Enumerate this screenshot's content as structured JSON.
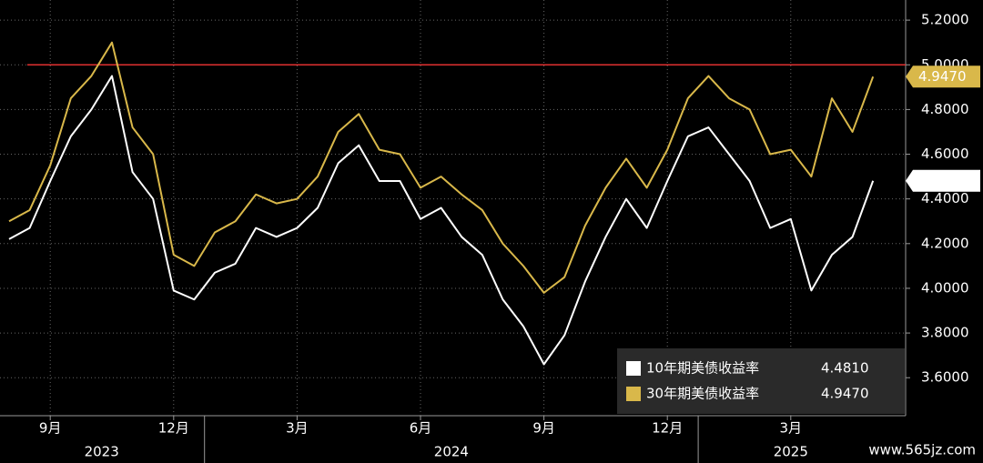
{
  "chart_data": {
    "type": "line",
    "categories": [
      null,
      null,
      "9月",
      null,
      null,
      null,
      null,
      null,
      "12月",
      null,
      null,
      null,
      null,
      null,
      "3月",
      null,
      null,
      null,
      null,
      null,
      "6月",
      null,
      null,
      null,
      null,
      null,
      "9月",
      null,
      null,
      null,
      null,
      null,
      "12月",
      null,
      null,
      null,
      null,
      null,
      "3月",
      null,
      null,
      null,
      null
    ],
    "year_groups": [
      {
        "label": "2023",
        "start": 0
      },
      {
        "label": "2024",
        "start": 10
      },
      {
        "label": "2025",
        "start": 34
      }
    ],
    "series": [
      {
        "name": "30年期美债收益率",
        "color": "#d9b84a",
        "last": {
          "value": 4.947,
          "label": "4.9470"
        },
        "values": [
          4.3,
          4.35,
          4.55,
          4.85,
          4.95,
          5.1,
          4.72,
          4.6,
          4.15,
          4.1,
          4.25,
          4.3,
          4.42,
          4.38,
          4.4,
          4.5,
          4.7,
          4.78,
          4.62,
          4.6,
          4.45,
          4.5,
          4.42,
          4.35,
          4.2,
          4.1,
          3.98,
          4.05,
          4.28,
          4.45,
          4.58,
          4.45,
          4.62,
          4.85,
          4.95,
          4.85,
          4.8,
          4.6,
          4.62,
          4.5,
          4.85,
          4.7,
          4.947
        ]
      },
      {
        "name": "10年期美债收益率",
        "color": "#ffffff",
        "last": {
          "value": 4.481,
          "label": "4.4810"
        },
        "values": [
          4.22,
          4.27,
          4.48,
          4.68,
          4.8,
          4.95,
          4.52,
          4.4,
          3.99,
          3.95,
          4.07,
          4.11,
          4.27,
          4.23,
          4.27,
          4.36,
          4.56,
          4.64,
          4.48,
          4.48,
          4.31,
          4.36,
          4.23,
          4.15,
          3.95,
          3.83,
          3.66,
          3.79,
          4.03,
          4.23,
          4.4,
          4.27,
          4.48,
          4.68,
          4.72,
          4.6,
          4.48,
          4.27,
          4.31,
          3.99,
          4.15,
          4.23,
          4.481
        ]
      }
    ],
    "reference_line": {
      "value": 5.0,
      "color": "#e03030"
    },
    "ylim": [
      3.43,
      5.29
    ],
    "yticks": [
      {
        "value": 3.6,
        "label": "3.6000"
      },
      {
        "value": 3.8,
        "label": "3.8000"
      },
      {
        "value": 4.0,
        "label": "4.0000"
      },
      {
        "value": 4.2,
        "label": "4.2000"
      },
      {
        "value": 4.4,
        "label": "4.4000"
      },
      {
        "value": 4.6,
        "label": "4.6000"
      },
      {
        "value": 4.8,
        "label": "4.8000"
      },
      {
        "value": 5.0,
        "label": "5.0000"
      },
      {
        "value": 5.2,
        "label": "5.2000"
      }
    ],
    "grid": true,
    "legend": "bottom-right",
    "watermark": "www.565jz.com"
  }
}
